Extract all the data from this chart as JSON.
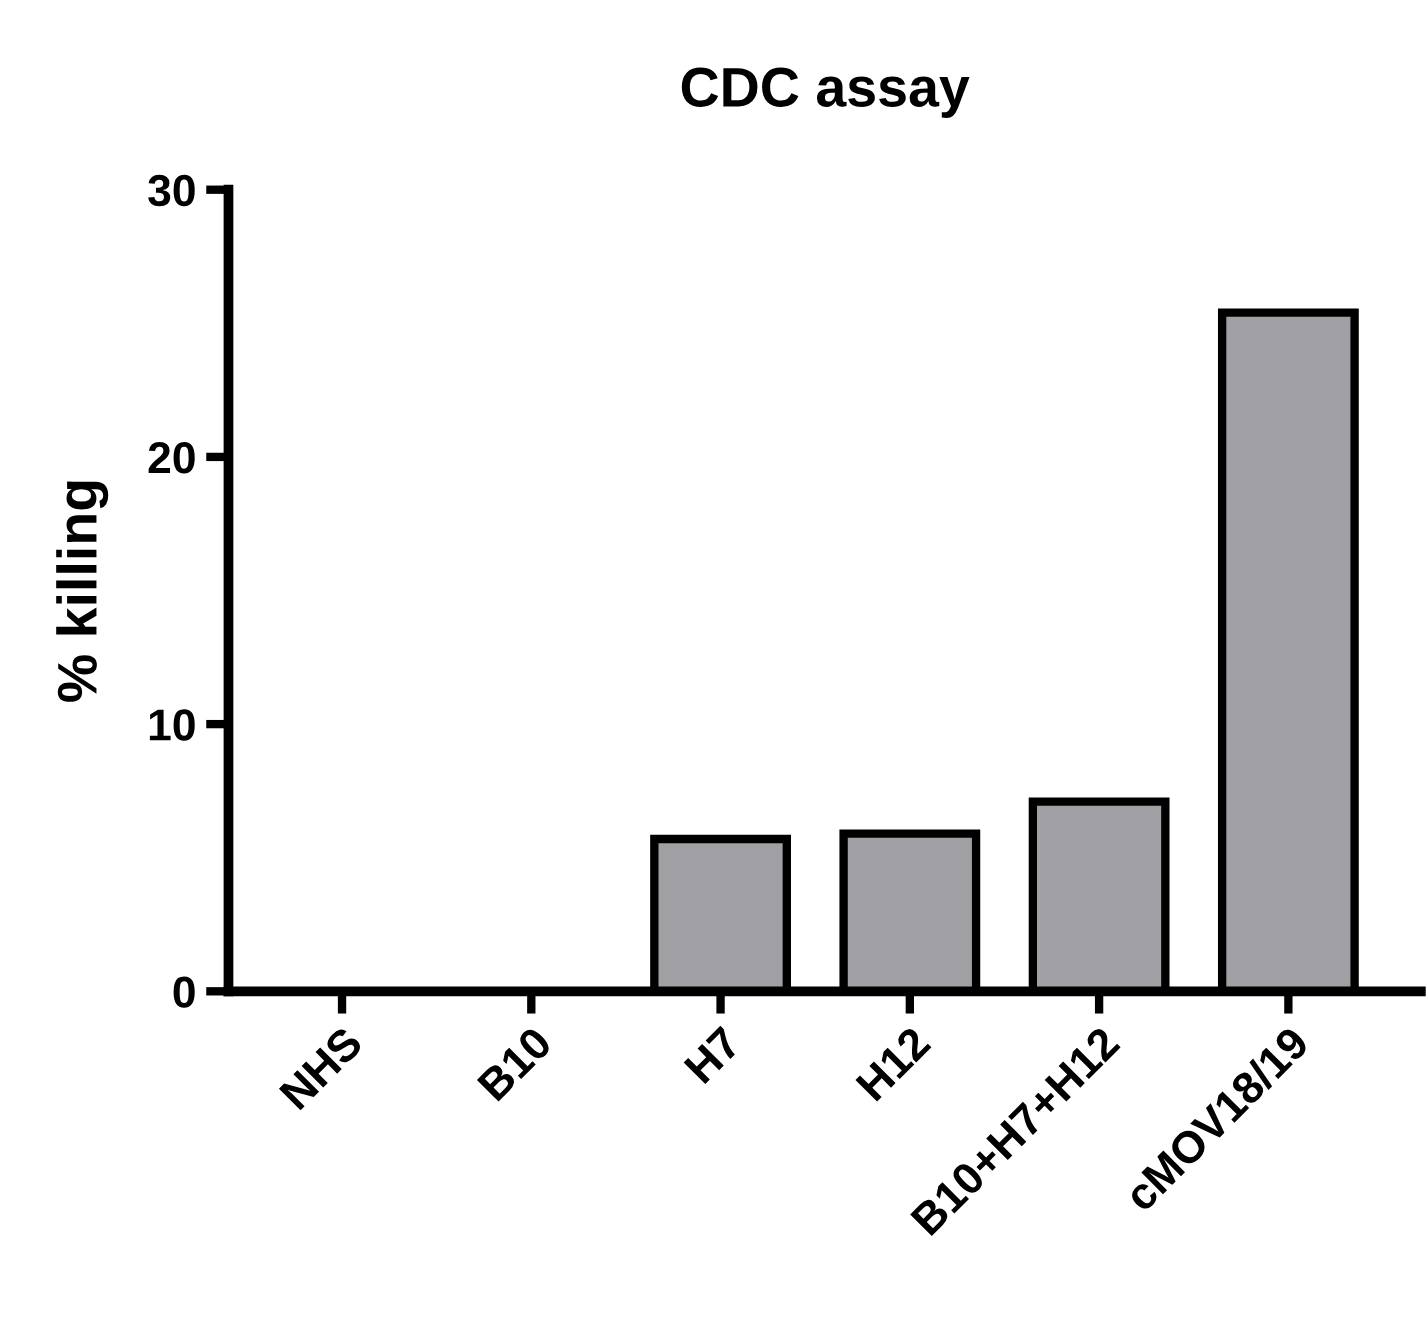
{
  "chart_data": {
    "type": "bar",
    "title": "CDC assay",
    "ylabel": "% killing",
    "categories": [
      "NHS",
      "B10",
      "H7",
      "H12",
      "B10+H7+H12",
      "cMOV18/19"
    ],
    "values": [
      0,
      0,
      5.7,
      5.9,
      7.1,
      25.4
    ],
    "color": "#a0a0a4",
    "ylim": [
      0,
      30
    ],
    "yticks": [
      0,
      10,
      20,
      30
    ],
    "grid": false
  }
}
